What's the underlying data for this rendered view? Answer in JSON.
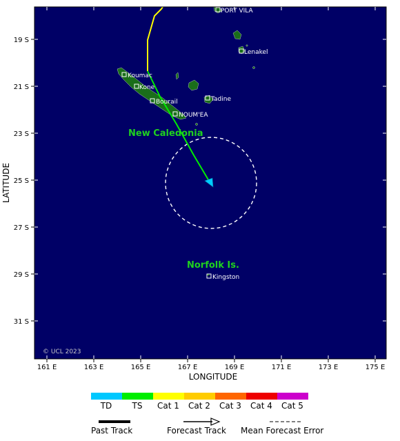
{
  "map": {
    "x_axis_label": "LONGITUDE",
    "y_axis_label": "LATITUDE",
    "copyright": "© UCL 2023",
    "ocean_color": "#000066",
    "land_color": "#1a6e1a",
    "lon_ticks": [
      "161 E",
      "163 E",
      "165 E",
      "167 E",
      "169 E",
      "171 E",
      "173 E",
      "175 E"
    ],
    "lat_ticks": [
      "19 S",
      "21 S",
      "23 S",
      "25 S",
      "27 S",
      "29 S",
      "31 S"
    ],
    "regions": [
      {
        "name": "New Caledonia"
      },
      {
        "name": "Norfolk Is."
      }
    ],
    "towns": [
      {
        "name": "PORT VILA"
      },
      {
        "name": "Lenakel"
      },
      {
        "name": "Koumac"
      },
      {
        "name": "Kone"
      },
      {
        "name": "Bourail"
      },
      {
        "name": "Tadine"
      },
      {
        "name": "NOUM'EA"
      },
      {
        "name": "Kingston"
      }
    ],
    "past_track": {
      "category": "Cat 1",
      "color": "#ffff00"
    },
    "forecast_track": {
      "category": "TS",
      "color": "#00ee00",
      "arrow_color": "#00ccff"
    }
  },
  "legend": {
    "categories": [
      {
        "label": "TD",
        "color": "#00c8ff"
      },
      {
        "label": "TS",
        "color": "#00ee00"
      },
      {
        "label": "Cat 1",
        "color": "#ffff00"
      },
      {
        "label": "Cat 2",
        "color": "#ffcc00"
      },
      {
        "label": "Cat 3",
        "color": "#ff6600"
      },
      {
        "label": "Cat 4",
        "color": "#ee0000"
      },
      {
        "label": "Cat 5",
        "color": "#cc00cc"
      }
    ],
    "past_track_label": "Past Track",
    "forecast_track_label": "Forecast Track",
    "mean_error_label": "Mean Forecast Error"
  }
}
